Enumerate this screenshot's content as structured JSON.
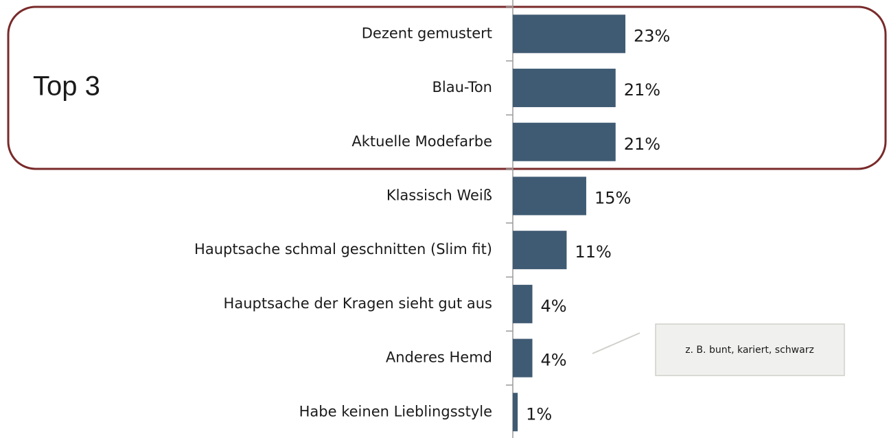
{
  "chart_data": {
    "type": "bar",
    "orientation": "horizontal",
    "categories": [
      "Dezent gemustert",
      "Blau-Ton",
      "Aktuelle Modefarbe",
      "Klassisch Weiß",
      "Hauptsache schmal geschnitten (Slim fit)",
      "Hauptsache der Kragen sieht gut aus",
      "Anderes Hemd",
      "Habe keinen Lieblingsstyle"
    ],
    "values": [
      23,
      21,
      21,
      15,
      11,
      4,
      4,
      1
    ],
    "value_labels": [
      "23%",
      "21%",
      "21%",
      "15%",
      "11%",
      "4%",
      "4%",
      "1%"
    ],
    "color": "#3f5b73",
    "annotations": [
      "Top 3",
      "z. B. bunt, kariert, schwarz"
    ]
  }
}
